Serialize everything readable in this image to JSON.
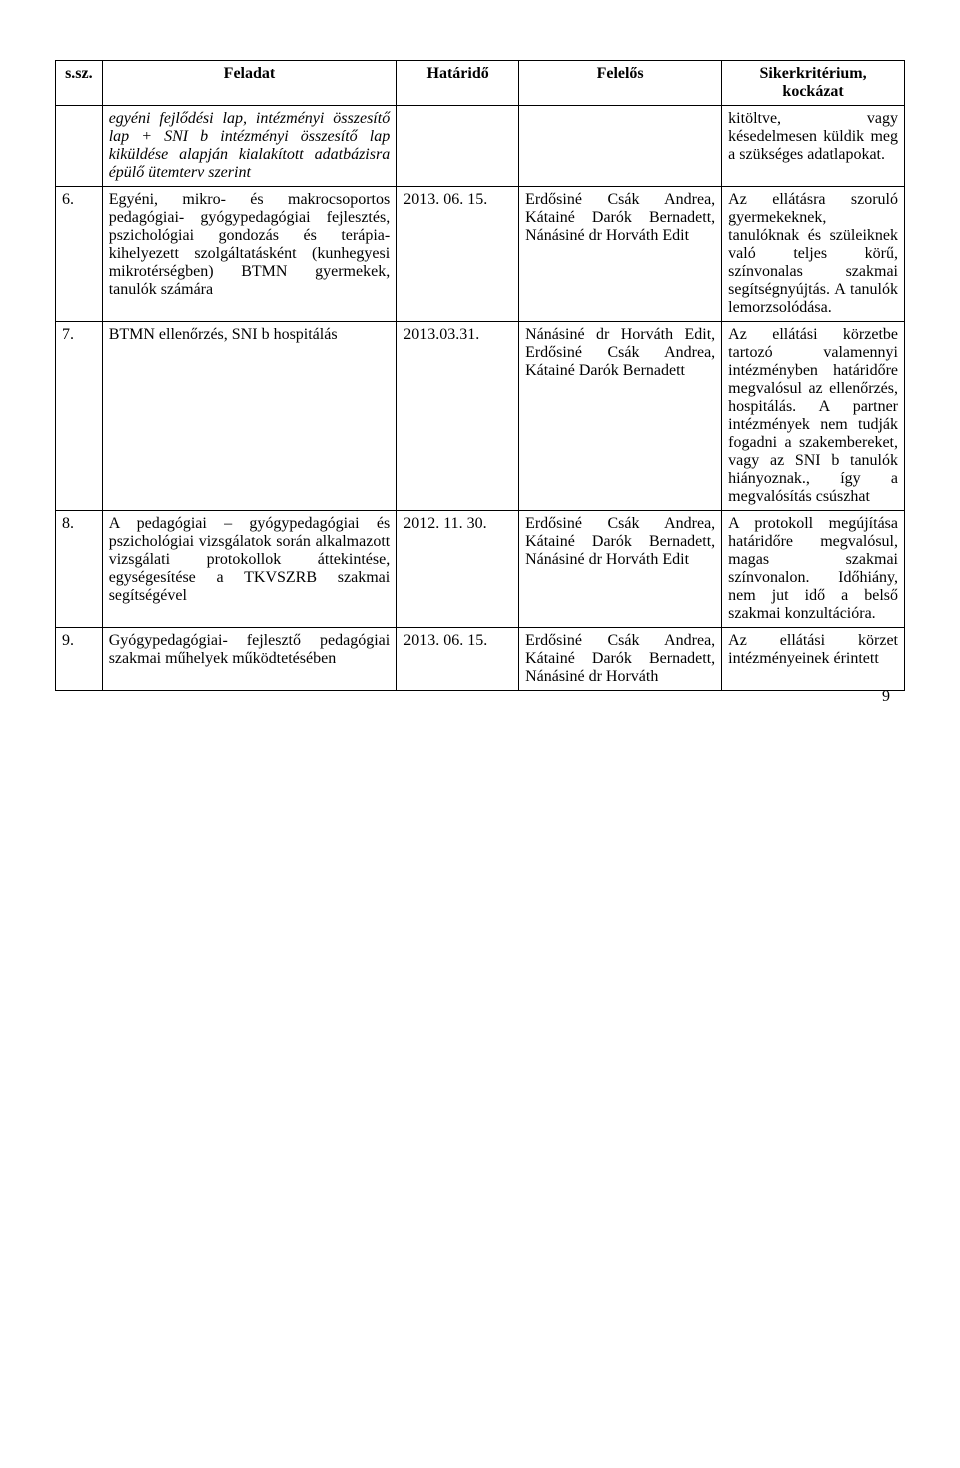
{
  "headers": {
    "num": "s.sz.",
    "task": "Feladat",
    "deadline": "Határidő",
    "responsible": "Felelős",
    "criteria": "Sikerkritérium, kockázat"
  },
  "rows": [
    {
      "num": "",
      "task": "egyéni fejlődési lap, intézményi összesítő lap + SNI b intézményi összesítő lap kiküldése alapján kialakított adatbázisra épülő ütemterv szerint",
      "deadline": "",
      "responsible": "",
      "criteria": "kitöltve, vagy késedelmesen küldik meg a szükséges adatlapokat."
    },
    {
      "num": "6.",
      "task": "Egyéni, mikro- és makrocsoportos pedagógiai- gyógypedagógiai fejlesztés, pszichológiai gondozás és terápia- kihelyezett szolgáltatásként (kunhegyesi mikrotérségben) BTMN gyermekek, tanulók számára",
      "deadline": "2013. 06. 15.",
      "responsible": "Erdősiné Csák Andrea, Kátainé Darók Bernadett, Nánásiné dr Horváth Edit",
      "criteria": "Az ellátásra szoruló gyermekeknek, tanulóknak és szüleiknek való teljes körű, színvonalas szakmai segítségnyújtás. A tanulók lemorzsolódása."
    },
    {
      "num": "7.",
      "task": "BTMN ellenőrzés, SNI b hospitálás",
      "deadline": "2013.03.31.",
      "responsible": "Nánásiné dr Horváth Edit, Erdősiné Csák Andrea, Kátainé Darók Bernadett",
      "criteria": "Az ellátási körzetbe tartozó valamennyi intézményben határidőre megvalósul az ellenőrzés, hospitálás. A partner intézmények nem tudják fogadni a szakembereket, vagy az SNI b tanulók hiányoznak., így a megvalósítás csúszhat"
    },
    {
      "num": "8.",
      "task": "A pedagógiai – gyógypedagógiai és pszichológiai vizsgálatok során alkalmazott vizsgálati protokollok áttekintése, egységesítése a TKVSZRB szakmai segítségével",
      "deadline": "2012. 11. 30.",
      "responsible": "Erdősiné Csák Andrea, Kátainé Darók Bernadett, Nánásiné dr Horváth Edit",
      "criteria": "A protokoll megújítása határidőre megvalósul, magas szakmai színvonalon. Időhiány, nem jut idő a belső szakmai konzultációra."
    },
    {
      "num": "9.",
      "task": "Gyógypedagógiai- fejlesztő pedagógiai szakmai műhelyek működtetésében",
      "deadline": "2013. 06. 15.",
      "responsible": "Erdősiné Csák Andrea, Kátainé Darók Bernadett, Nánásiné dr Horváth",
      "criteria": "Az ellátási körzet intézményeinek érintett"
    }
  ],
  "pageNumber": "9"
}
